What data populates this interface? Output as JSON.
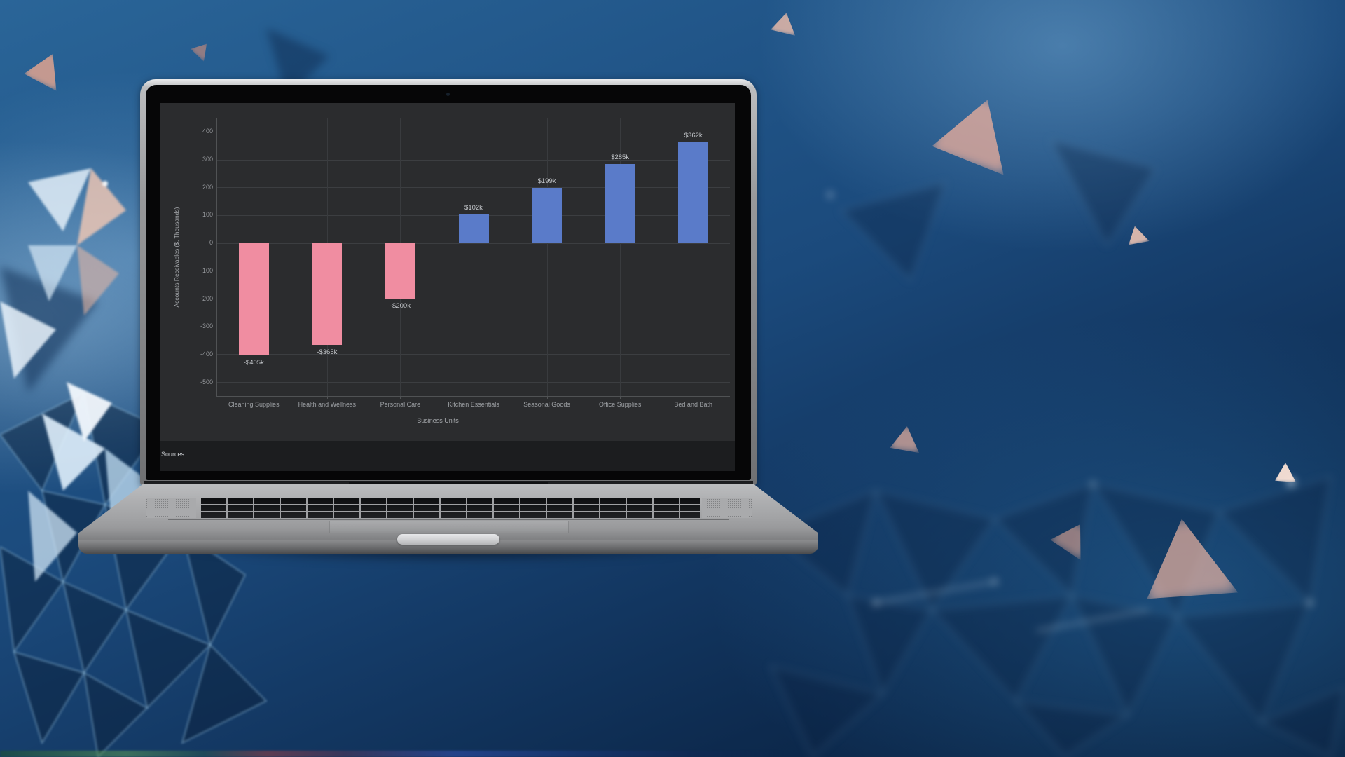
{
  "chart_data": {
    "type": "bar",
    "title": "",
    "categories": [
      "Cleaning Supplies",
      "Health and Wellness",
      "Personal Care",
      "Kitchen Essentials",
      "Seasonal Goods",
      "Office Supplies",
      "Bed and Bath"
    ],
    "values": [
      -405,
      -365,
      -200,
      102,
      199,
      285,
      362
    ],
    "value_labels": [
      "-$405k",
      "-$365k",
      "-$200k",
      "$102k",
      "$199k",
      "$285k",
      "$362k"
    ],
    "xlabel": "Business Units",
    "ylabel": "Accounts Receivables ($, Thousands)",
    "y_ticks": [
      400,
      300,
      200,
      100,
      0,
      -100,
      -200,
      -300,
      -400,
      -500
    ],
    "ylim": [
      -550,
      450
    ],
    "grid": true,
    "legend_position": "none",
    "colors": {
      "positive_bar": "#5a7bc9",
      "negative_bar": "#f08da1",
      "chart_background": "#2b2c2e"
    }
  },
  "screen_footer": {
    "sources_label": "Sources:"
  }
}
